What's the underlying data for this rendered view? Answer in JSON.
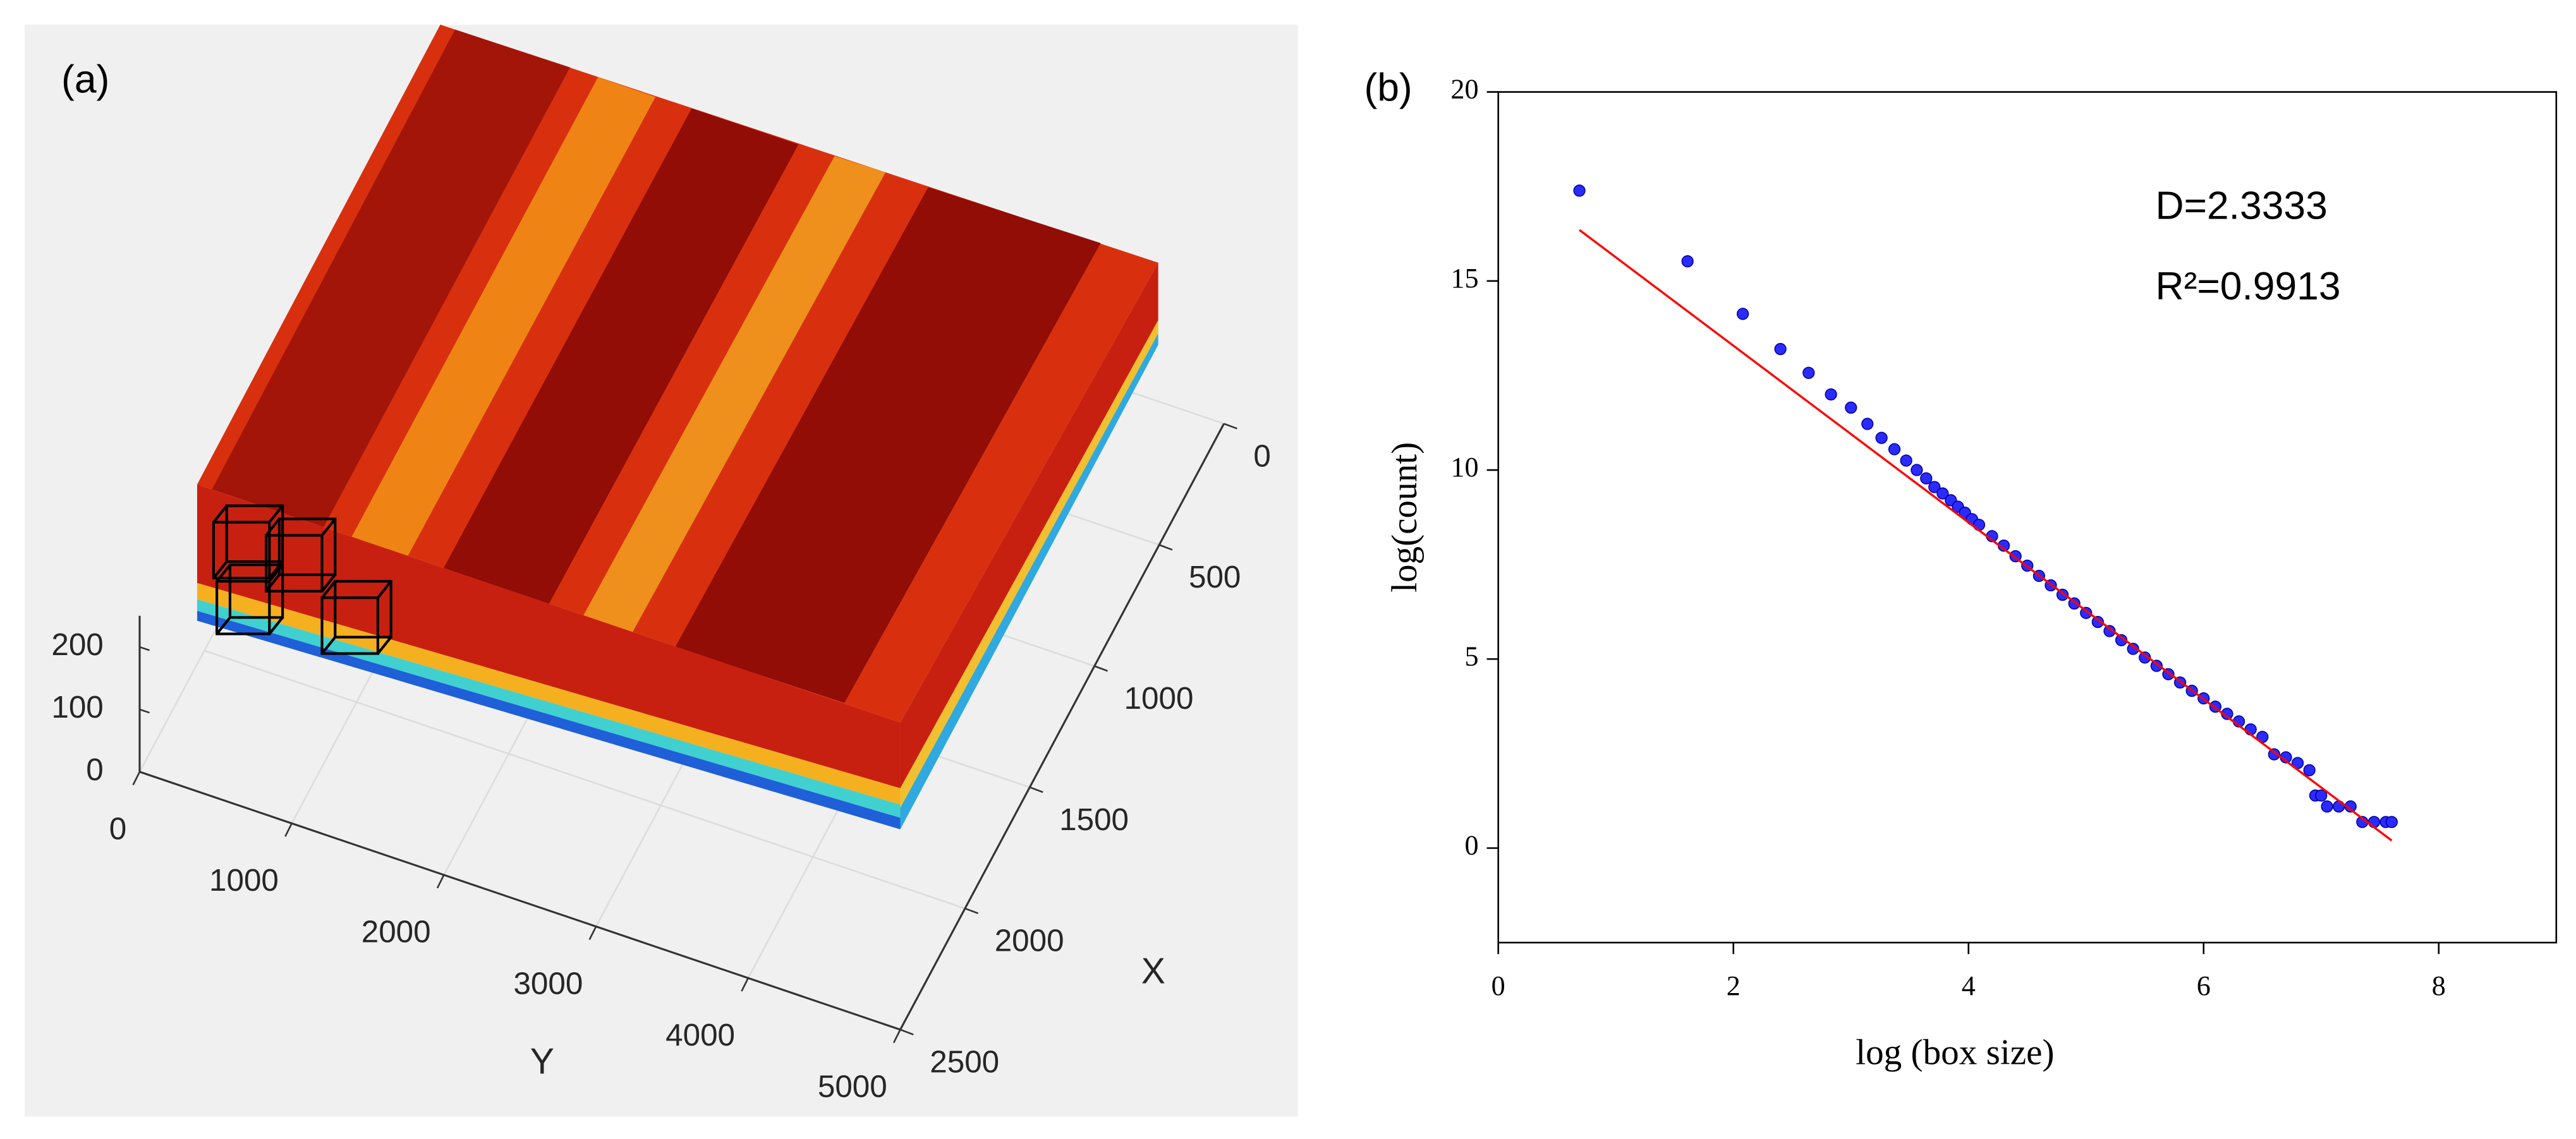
{
  "chart_data": [
    {
      "type": "surface",
      "label": "(a)",
      "xlabel": "X",
      "ylabel": "Y",
      "xlim": [
        0,
        2500
      ],
      "ylim": [
        0,
        5000
      ],
      "zlim": [
        0,
        250
      ],
      "xticks": [
        0,
        500,
        1000,
        1500,
        2000,
        2500
      ],
      "yticks": [
        0,
        1000,
        2000,
        3000,
        4000,
        5000
      ],
      "zticks": [
        0,
        100,
        200
      ]
    },
    {
      "type": "scatter",
      "label": "(b)",
      "xlabel": "log (box size)",
      "ylabel": "log(count)",
      "xlim": [
        0,
        9
      ],
      "ylim": [
        -2.5,
        20
      ],
      "xticks": [
        0,
        2,
        4,
        6,
        8
      ],
      "yticks": [
        0,
        5,
        10,
        15,
        20
      ],
      "annotations": [
        "D=2.3333",
        "R²=0.9913"
      ],
      "series": [
        {
          "type": "scatter",
          "color": "#2b2bff",
          "x": [
            0.69,
            1.61,
            2.08,
            2.4,
            2.64,
            2.83,
            3.0,
            3.14,
            3.26,
            3.37,
            3.47,
            3.56,
            3.64,
            3.71,
            3.78,
            3.85,
            3.91,
            3.97,
            4.03,
            4.09,
            4.2,
            4.3,
            4.4,
            4.5,
            4.6,
            4.7,
            4.8,
            4.9,
            5.0,
            5.1,
            5.2,
            5.3,
            5.4,
            5.5,
            5.6,
            5.7,
            5.8,
            5.9,
            6.0,
            6.1,
            6.2,
            6.3,
            6.4,
            6.5,
            6.6,
            6.7,
            6.8,
            6.9,
            6.95,
            7.0,
            7.05,
            7.15,
            7.25,
            7.35,
            7.45,
            7.55,
            7.6
          ],
          "values": [
            17.39,
            15.52,
            14.13,
            13.2,
            12.57,
            12.0,
            11.65,
            11.22,
            10.85,
            10.55,
            10.25,
            10.0,
            9.78,
            9.55,
            9.38,
            9.2,
            9.03,
            8.87,
            8.7,
            8.55,
            8.25,
            8.0,
            7.72,
            7.47,
            7.2,
            6.95,
            6.7,
            6.47,
            6.22,
            5.98,
            5.74,
            5.5,
            5.27,
            5.04,
            4.82,
            4.6,
            4.38,
            4.16,
            3.96,
            3.74,
            3.55,
            3.35,
            3.14,
            2.94,
            2.48,
            2.4,
            2.25,
            2.06,
            1.39,
            1.39,
            1.1,
            1.1,
            1.1,
            0.69,
            0.69,
            0.69,
            0.69
          ]
        },
        {
          "type": "line",
          "color": "#ff0000",
          "x": [
            0.69,
            7.6
          ],
          "values": [
            16.35,
            0.2
          ]
        }
      ]
    }
  ]
}
